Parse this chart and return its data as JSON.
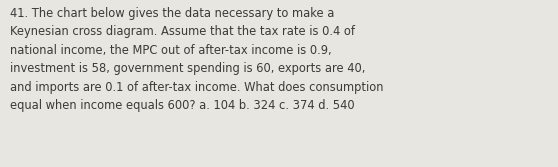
{
  "text": "41. The chart below gives the data necessary to make a\nKeynesian cross diagram. Assume that the tax rate is 0.4 of\nnational income, the MPC out of after-tax income is 0.9,\ninvestment is 58, government spending is 60, exports are 40,\nand imports are 0.1 of after-tax income. What does consumption\nequal when income equals 600? a. 104 b. 324 c. 374 d. 540",
  "background_color": "#e8e6e1",
  "text_color": "#3d3b38",
  "font_size": 8.3,
  "fig_width": 5.58,
  "fig_height": 1.67,
  "dpi": 100
}
